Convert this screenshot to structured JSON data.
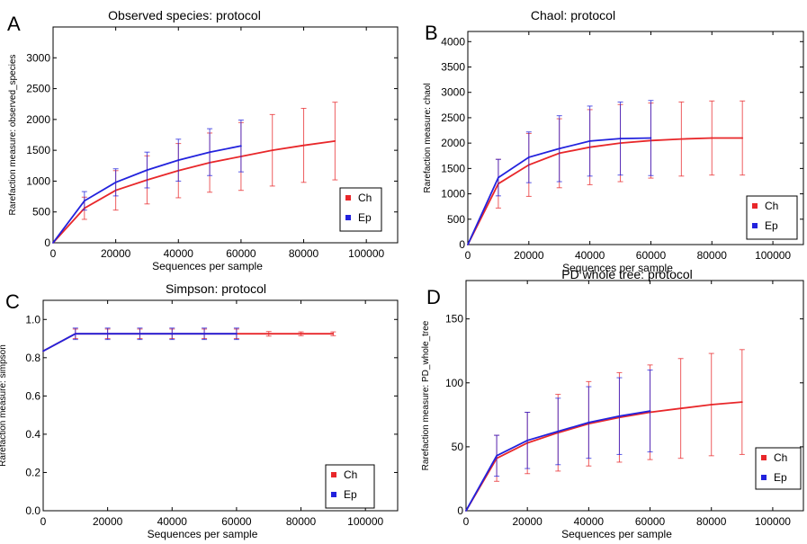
{
  "colors": {
    "Ch": "#e8272a",
    "Ep": "#2222dd"
  },
  "chart_data": [
    {
      "panel": "A",
      "type": "line",
      "title": "Observed species: protocol",
      "xlabel": "Sequences per sample",
      "ylabel": "Rarefaction measure: observed_species",
      "xlim": [
        0,
        110000
      ],
      "ylim": [
        0,
        3500
      ],
      "xticks": [
        0,
        20000,
        40000,
        60000,
        80000,
        100000
      ],
      "yticks": [
        0,
        500,
        1000,
        1500,
        2000,
        2500,
        3000
      ],
      "legend": "bottom-right",
      "series": [
        {
          "name": "Ch",
          "x": [
            0,
            10000,
            20000,
            30000,
            40000,
            50000,
            60000,
            70000,
            80000,
            90000
          ],
          "y": [
            0,
            560,
            850,
            1020,
            1170,
            1300,
            1400,
            1500,
            1580,
            1650
          ],
          "err": [
            0,
            180,
            320,
            390,
            440,
            480,
            550,
            580,
            600,
            630
          ]
        },
        {
          "name": "Ep",
          "x": [
            0,
            10000,
            20000,
            30000,
            40000,
            50000,
            60000
          ],
          "y": [
            0,
            680,
            980,
            1180,
            1340,
            1470,
            1570
          ],
          "err": [
            0,
            150,
            220,
            290,
            340,
            380,
            420
          ]
        }
      ]
    },
    {
      "panel": "B",
      "type": "line",
      "title": "Chaol: protocol",
      "xlabel": "Sequences per sample",
      "ylabel": "Rarefaction measure: chaol",
      "xlim": [
        0,
        110000
      ],
      "ylim": [
        0,
        4200
      ],
      "xticks": [
        0,
        20000,
        40000,
        60000,
        80000,
        100000
      ],
      "yticks": [
        0,
        500,
        1000,
        1500,
        2000,
        2500,
        3000,
        3500,
        4000
      ],
      "legend": "bottom-right",
      "series": [
        {
          "name": "Ch",
          "x": [
            0,
            10000,
            20000,
            30000,
            40000,
            50000,
            60000,
            70000,
            80000,
            90000
          ],
          "y": [
            0,
            1200,
            1570,
            1800,
            1920,
            2000,
            2050,
            2080,
            2100,
            2100
          ],
          "err": [
            0,
            480,
            620,
            680,
            740,
            760,
            740,
            730,
            730,
            730
          ]
        },
        {
          "name": "Ep",
          "x": [
            0,
            10000,
            20000,
            30000,
            40000,
            50000,
            60000
          ],
          "y": [
            0,
            1320,
            1720,
            1890,
            2040,
            2090,
            2100
          ],
          "err": [
            0,
            360,
            500,
            650,
            690,
            720,
            740
          ]
        }
      ]
    },
    {
      "panel": "C",
      "type": "line",
      "title": "Simpson: protocol",
      "xlabel": "Sequences per sample",
      "ylabel": "Rarefaction measure: simpson",
      "xlim": [
        0,
        110000
      ],
      "ylim": [
        0,
        1.1
      ],
      "xticks": [
        0,
        20000,
        40000,
        60000,
        80000,
        100000
      ],
      "yticks": [
        "0.0",
        "0.2",
        "0.4",
        "0.6",
        "0.8",
        "1.0"
      ],
      "legend": "bottom-right",
      "series": [
        {
          "name": "Ch",
          "x": [
            0,
            10000,
            20000,
            30000,
            40000,
            50000,
            60000,
            70000,
            80000,
            90000
          ],
          "y": [
            0.835,
            0.925,
            0.925,
            0.925,
            0.925,
            0.925,
            0.925,
            0.925,
            0.925,
            0.925
          ],
          "err": [
            0,
            0.025,
            0.025,
            0.025,
            0.025,
            0.025,
            0.025,
            0.012,
            0.01,
            0.01
          ]
        },
        {
          "name": "Ep",
          "x": [
            0,
            10000,
            20000,
            30000,
            40000,
            50000,
            60000
          ],
          "y": [
            0.835,
            0.925,
            0.925,
            0.925,
            0.925,
            0.925,
            0.925
          ],
          "err": [
            0,
            0.03,
            0.03,
            0.03,
            0.03,
            0.03,
            0.03
          ]
        }
      ]
    },
    {
      "panel": "D",
      "type": "line",
      "title": "PD whole tree: protocol",
      "xlabel": "Sequences per sample",
      "ylabel": "Rarefaction measure: PD_whole_tree",
      "xlim": [
        0,
        110000
      ],
      "ylim": [
        0,
        180
      ],
      "xticks": [
        0,
        20000,
        40000,
        60000,
        80000,
        100000
      ],
      "yticks": [
        0,
        50,
        100,
        150
      ],
      "legend": "bottom-right",
      "series": [
        {
          "name": "Ch",
          "x": [
            0,
            10000,
            20000,
            30000,
            40000,
            50000,
            60000,
            70000,
            80000,
            90000
          ],
          "y": [
            0,
            41,
            53,
            61,
            68,
            73,
            77,
            80,
            83,
            85
          ],
          "err": [
            0,
            18,
            24,
            30,
            33,
            35,
            37,
            39,
            40,
            41
          ]
        },
        {
          "name": "Ep",
          "x": [
            0,
            10000,
            20000,
            30000,
            40000,
            50000,
            60000
          ],
          "y": [
            0,
            43,
            55,
            62,
            69,
            74,
            78
          ],
          "err": [
            0,
            16,
            22,
            26,
            28,
            30,
            32
          ]
        }
      ]
    }
  ]
}
